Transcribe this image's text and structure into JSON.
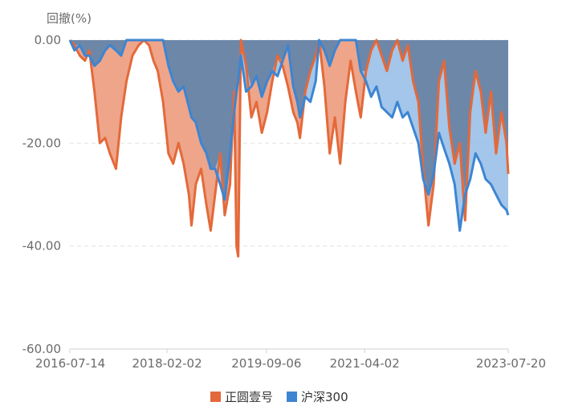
{
  "chart_data": {
    "type": "area",
    "ylabel": "回撤(%)",
    "ylim": [
      -60,
      0
    ],
    "yticks": [
      0,
      -20,
      -40,
      -60
    ],
    "ytick_labels": [
      "0.00",
      "-20.00",
      "-40.00",
      "-60.00"
    ],
    "xlim": [
      "2016-07-14",
      "2023-07-20"
    ],
    "x_ticks": [
      "2016-07-14",
      "2018-02-02",
      "2019-09-06",
      "2021-04-02",
      "2023-07-20"
    ],
    "grid": true,
    "legend": "bottom-center",
    "series": [
      {
        "name": "正圆壹号",
        "color": "#E4693A",
        "fill": "#EEA58A",
        "points": [
          [
            "2016-07-14",
            0
          ],
          [
            "2016-08-10",
            -1
          ],
          [
            "2016-09-10",
            -3
          ],
          [
            "2016-10-10",
            -4
          ],
          [
            "2016-11-05",
            -2
          ],
          [
            "2016-12-05",
            -10
          ],
          [
            "2017-01-05",
            -20
          ],
          [
            "2017-02-05",
            -19
          ],
          [
            "2017-03-05",
            -22
          ],
          [
            "2017-04-10",
            -25
          ],
          [
            "2017-05-10",
            -15
          ],
          [
            "2017-06-10",
            -8
          ],
          [
            "2017-07-15",
            -3
          ],
          [
            "2017-08-20",
            -1
          ],
          [
            "2017-09-20",
            0
          ],
          [
            "2017-10-20",
            -1
          ],
          [
            "2017-11-15",
            -4
          ],
          [
            "2017-12-10",
            -6
          ],
          [
            "2018-01-10",
            -12
          ],
          [
            "2018-02-10",
            -22
          ],
          [
            "2018-03-10",
            -24
          ],
          [
            "2018-04-10",
            -20
          ],
          [
            "2018-05-10",
            -24
          ],
          [
            "2018-06-10",
            -30
          ],
          [
            "2018-06-25",
            -36
          ],
          [
            "2018-07-20",
            -28
          ],
          [
            "2018-08-20",
            -25
          ],
          [
            "2018-09-20",
            -32
          ],
          [
            "2018-10-15",
            -37
          ],
          [
            "2018-11-10",
            -30
          ],
          [
            "2018-12-10",
            -22
          ],
          [
            "2019-01-05",
            -34
          ],
          [
            "2019-02-05",
            -28
          ],
          [
            "2019-03-01",
            -10
          ],
          [
            "2019-03-15",
            -40
          ],
          [
            "2019-03-25",
            -42
          ],
          [
            "2019-04-10",
            0
          ],
          [
            "2019-05-10",
            -5
          ],
          [
            "2019-06-10",
            -15
          ],
          [
            "2019-07-10",
            -12
          ],
          [
            "2019-08-10",
            -18
          ],
          [
            "2019-09-10",
            -14
          ],
          [
            "2019-10-10",
            -8
          ],
          [
            "2019-11-10",
            -3
          ],
          [
            "2019-12-10",
            -5
          ],
          [
            "2020-01-10",
            -9
          ],
          [
            "2020-02-10",
            -14
          ],
          [
            "2020-03-05",
            -16
          ],
          [
            "2020-03-20",
            -19
          ],
          [
            "2020-04-20",
            -10
          ],
          [
            "2020-05-20",
            -6
          ],
          [
            "2020-06-20",
            -3
          ],
          [
            "2020-07-10",
            0
          ],
          [
            "2020-08-10",
            -9
          ],
          [
            "2020-09-10",
            -22
          ],
          [
            "2020-10-10",
            -15
          ],
          [
            "2020-11-10",
            -24
          ],
          [
            "2020-12-10",
            -12
          ],
          [
            "2021-01-10",
            -4
          ],
          [
            "2021-02-10",
            -10
          ],
          [
            "2021-03-10",
            -15
          ],
          [
            "2021-04-10",
            -6
          ],
          [
            "2021-05-10",
            -2
          ],
          [
            "2021-06-10",
            0
          ],
          [
            "2021-07-10",
            -3
          ],
          [
            "2021-08-10",
            -6
          ],
          [
            "2021-09-10",
            -2
          ],
          [
            "2021-10-10",
            0
          ],
          [
            "2021-11-10",
            -4
          ],
          [
            "2021-12-10",
            -1
          ],
          [
            "2022-01-10",
            -8
          ],
          [
            "2022-02-10",
            -12
          ],
          [
            "2022-03-10",
            -25
          ],
          [
            "2022-04-10",
            -36
          ],
          [
            "2022-05-10",
            -28
          ],
          [
            "2022-06-10",
            -8
          ],
          [
            "2022-07-10",
            -4
          ],
          [
            "2022-08-10",
            -17
          ],
          [
            "2022-09-10",
            -24
          ],
          [
            "2022-10-10",
            -20
          ],
          [
            "2022-11-10",
            -35
          ],
          [
            "2022-12-10",
            -14
          ],
          [
            "2023-01-10",
            -6
          ],
          [
            "2023-02-10",
            -10
          ],
          [
            "2023-03-10",
            -18
          ],
          [
            "2023-04-10",
            -10
          ],
          [
            "2023-05-10",
            -22
          ],
          [
            "2023-06-10",
            -14
          ],
          [
            "2023-07-10",
            -20
          ],
          [
            "2023-07-20",
            -26
          ]
        ]
      },
      {
        "name": "沪深300",
        "color": "#3D85D2",
        "fill": "#93BCE6",
        "points": [
          [
            "2016-07-14",
            0
          ],
          [
            "2016-08-10",
            -2
          ],
          [
            "2016-09-10",
            -1
          ],
          [
            "2016-10-10",
            -3
          ],
          [
            "2016-11-05",
            -3
          ],
          [
            "2016-12-05",
            -5
          ],
          [
            "2017-01-05",
            -4
          ],
          [
            "2017-02-05",
            -2
          ],
          [
            "2017-03-05",
            -1
          ],
          [
            "2017-04-10",
            -2
          ],
          [
            "2017-05-10",
            -3
          ],
          [
            "2017-06-10",
            0
          ],
          [
            "2017-07-15",
            0
          ],
          [
            "2017-08-20",
            0
          ],
          [
            "2017-09-20",
            0
          ],
          [
            "2017-10-20",
            0
          ],
          [
            "2017-11-15",
            0
          ],
          [
            "2017-12-10",
            0
          ],
          [
            "2018-01-10",
            0
          ],
          [
            "2018-02-10",
            -5
          ],
          [
            "2018-03-10",
            -8
          ],
          [
            "2018-04-10",
            -10
          ],
          [
            "2018-05-10",
            -9
          ],
          [
            "2018-06-10",
            -13
          ],
          [
            "2018-06-25",
            -15
          ],
          [
            "2018-07-20",
            -16
          ],
          [
            "2018-08-20",
            -20
          ],
          [
            "2018-09-20",
            -22
          ],
          [
            "2018-10-15",
            -25
          ],
          [
            "2018-11-10",
            -25
          ],
          [
            "2018-12-10",
            -28
          ],
          [
            "2019-01-05",
            -31
          ],
          [
            "2019-02-05",
            -22
          ],
          [
            "2019-03-01",
            -14
          ],
          [
            "2019-03-15",
            -10
          ],
          [
            "2019-03-25",
            -8
          ],
          [
            "2019-04-10",
            -3
          ],
          [
            "2019-05-10",
            -10
          ],
          [
            "2019-06-10",
            -9
          ],
          [
            "2019-07-10",
            -7
          ],
          [
            "2019-08-10",
            -11
          ],
          [
            "2019-09-10",
            -8
          ],
          [
            "2019-10-10",
            -6
          ],
          [
            "2019-11-10",
            -7
          ],
          [
            "2019-12-10",
            -4
          ],
          [
            "2020-01-10",
            -1
          ],
          [
            "2020-02-10",
            -9
          ],
          [
            "2020-03-05",
            -12
          ],
          [
            "2020-03-20",
            -15
          ],
          [
            "2020-04-20",
            -11
          ],
          [
            "2020-05-20",
            -12
          ],
          [
            "2020-06-20",
            -8
          ],
          [
            "2020-07-10",
            0
          ],
          [
            "2020-08-10",
            -2
          ],
          [
            "2020-09-10",
            -5
          ],
          [
            "2020-10-10",
            -2
          ],
          [
            "2020-11-10",
            0
          ],
          [
            "2020-12-10",
            0
          ],
          [
            "2021-01-10",
            0
          ],
          [
            "2021-02-10",
            0
          ],
          [
            "2021-03-10",
            -6
          ],
          [
            "2021-04-10",
            -8
          ],
          [
            "2021-05-10",
            -11
          ],
          [
            "2021-06-10",
            -9
          ],
          [
            "2021-07-10",
            -13
          ],
          [
            "2021-08-10",
            -14
          ],
          [
            "2021-09-10",
            -15
          ],
          [
            "2021-10-10",
            -12
          ],
          [
            "2021-11-10",
            -15
          ],
          [
            "2021-12-10",
            -14
          ],
          [
            "2022-01-10",
            -17
          ],
          [
            "2022-02-10",
            -20
          ],
          [
            "2022-03-10",
            -27
          ],
          [
            "2022-04-10",
            -30
          ],
          [
            "2022-05-10",
            -26
          ],
          [
            "2022-06-10",
            -18
          ],
          [
            "2022-07-10",
            -21
          ],
          [
            "2022-08-10",
            -24
          ],
          [
            "2022-09-10",
            -28
          ],
          [
            "2022-10-10",
            -37
          ],
          [
            "2022-11-10",
            -30
          ],
          [
            "2022-12-10",
            -27
          ],
          [
            "2023-01-10",
            -22
          ],
          [
            "2023-02-10",
            -24
          ],
          [
            "2023-03-10",
            -27
          ],
          [
            "2023-04-10",
            -28
          ],
          [
            "2023-05-10",
            -30
          ],
          [
            "2023-06-10",
            -32
          ],
          [
            "2023-07-10",
            -33
          ],
          [
            "2023-07-20",
            -34
          ]
        ]
      }
    ]
  }
}
